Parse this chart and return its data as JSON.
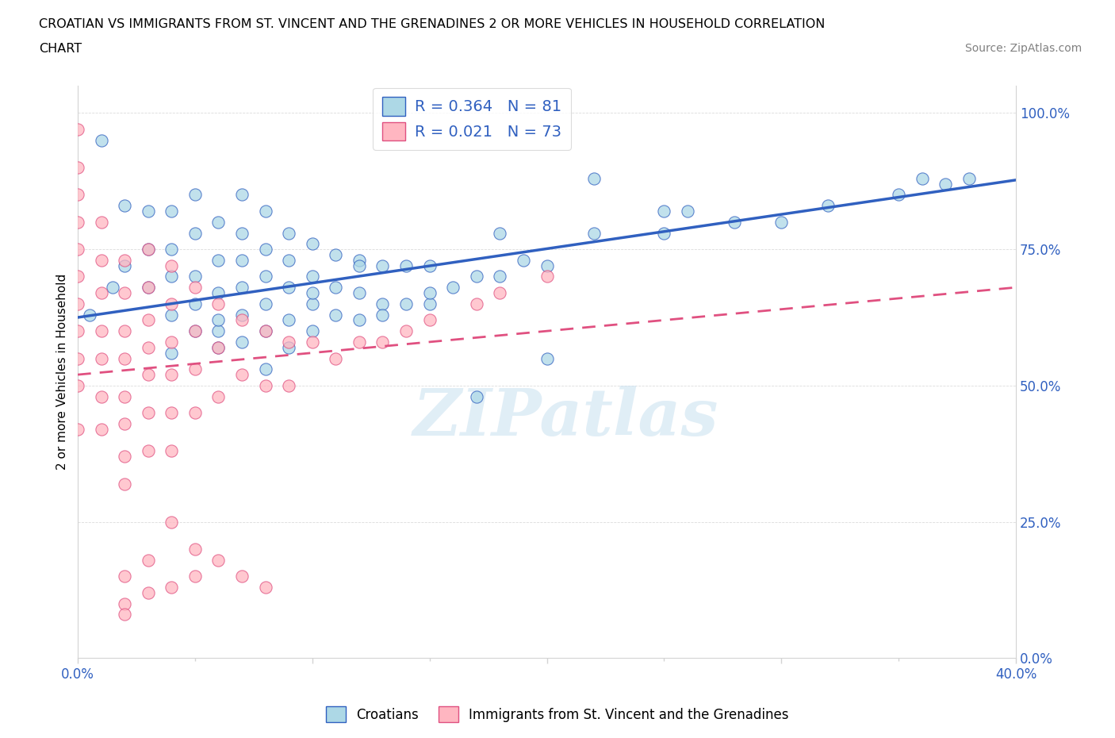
{
  "title_line1": "CROATIAN VS IMMIGRANTS FROM ST. VINCENT AND THE GRENADINES 2 OR MORE VEHICLES IN HOUSEHOLD CORRELATION",
  "title_line2": "CHART",
  "source_text": "Source: ZipAtlas.com",
  "ylabel": "2 or more Vehicles in Household",
  "legend_label_1": "Croatians",
  "legend_label_2": "Immigrants from St. Vincent and the Grenadines",
  "R1": 0.364,
  "N1": 81,
  "R2": 0.021,
  "N2": 73,
  "color_blue": "#ADD8E6",
  "color_pink": "#FFB6C1",
  "line_color_blue": "#3060C0",
  "line_color_pink": "#E05080",
  "xmin": 0.0,
  "xmax": 0.4,
  "ymin": 0.0,
  "ymax": 1.05,
  "blue_scatter_x": [
    0.005,
    0.01,
    0.015,
    0.02,
    0.02,
    0.03,
    0.03,
    0.03,
    0.04,
    0.04,
    0.04,
    0.04,
    0.05,
    0.05,
    0.05,
    0.05,
    0.05,
    0.06,
    0.06,
    0.06,
    0.06,
    0.07,
    0.07,
    0.07,
    0.07,
    0.07,
    0.07,
    0.08,
    0.08,
    0.08,
    0.08,
    0.08,
    0.09,
    0.09,
    0.09,
    0.09,
    0.1,
    0.1,
    0.1,
    0.1,
    0.11,
    0.11,
    0.11,
    0.12,
    0.12,
    0.12,
    0.13,
    0.13,
    0.14,
    0.14,
    0.15,
    0.15,
    0.16,
    0.17,
    0.18,
    0.19,
    0.2,
    0.22,
    0.25,
    0.28,
    0.3,
    0.32,
    0.35,
    0.37,
    0.22,
    0.26,
    0.17,
    0.2,
    0.08,
    0.06,
    0.09,
    0.13,
    0.15,
    0.04,
    0.06,
    0.1,
    0.12,
    0.18,
    0.25,
    0.36,
    0.38
  ],
  "blue_scatter_y": [
    0.63,
    0.95,
    0.68,
    0.72,
    0.83,
    0.68,
    0.75,
    0.82,
    0.63,
    0.7,
    0.75,
    0.82,
    0.6,
    0.65,
    0.7,
    0.78,
    0.85,
    0.6,
    0.67,
    0.73,
    0.8,
    0.58,
    0.63,
    0.68,
    0.73,
    0.78,
    0.85,
    0.6,
    0.65,
    0.7,
    0.75,
    0.82,
    0.62,
    0.68,
    0.73,
    0.78,
    0.6,
    0.65,
    0.7,
    0.76,
    0.63,
    0.68,
    0.74,
    0.62,
    0.67,
    0.73,
    0.65,
    0.72,
    0.65,
    0.72,
    0.65,
    0.72,
    0.68,
    0.7,
    0.7,
    0.73,
    0.72,
    0.78,
    0.78,
    0.8,
    0.8,
    0.83,
    0.85,
    0.87,
    0.88,
    0.82,
    0.48,
    0.55,
    0.53,
    0.57,
    0.57,
    0.63,
    0.67,
    0.56,
    0.62,
    0.67,
    0.72,
    0.78,
    0.82,
    0.88,
    0.88
  ],
  "pink_scatter_x": [
    0.0,
    0.0,
    0.0,
    0.0,
    0.0,
    0.0,
    0.0,
    0.0,
    0.0,
    0.0,
    0.0,
    0.01,
    0.01,
    0.01,
    0.01,
    0.01,
    0.01,
    0.01,
    0.02,
    0.02,
    0.02,
    0.02,
    0.02,
    0.02,
    0.02,
    0.02,
    0.03,
    0.03,
    0.03,
    0.03,
    0.03,
    0.03,
    0.03,
    0.04,
    0.04,
    0.04,
    0.04,
    0.04,
    0.04,
    0.05,
    0.05,
    0.05,
    0.05,
    0.06,
    0.06,
    0.06,
    0.07,
    0.07,
    0.08,
    0.08,
    0.09,
    0.09,
    0.1,
    0.11,
    0.12,
    0.13,
    0.14,
    0.15,
    0.17,
    0.18,
    0.2,
    0.04,
    0.05,
    0.03,
    0.02,
    0.02,
    0.02,
    0.03,
    0.04,
    0.05,
    0.06,
    0.07,
    0.08
  ],
  "pink_scatter_y": [
    0.97,
    0.9,
    0.85,
    0.8,
    0.75,
    0.7,
    0.65,
    0.6,
    0.55,
    0.5,
    0.42,
    0.8,
    0.73,
    0.67,
    0.6,
    0.55,
    0.48,
    0.42,
    0.73,
    0.67,
    0.6,
    0.55,
    0.48,
    0.43,
    0.37,
    0.32,
    0.75,
    0.68,
    0.62,
    0.57,
    0.52,
    0.45,
    0.38,
    0.72,
    0.65,
    0.58,
    0.52,
    0.45,
    0.38,
    0.68,
    0.6,
    0.53,
    0.45,
    0.65,
    0.57,
    0.48,
    0.62,
    0.52,
    0.6,
    0.5,
    0.58,
    0.5,
    0.58,
    0.55,
    0.58,
    0.58,
    0.6,
    0.62,
    0.65,
    0.67,
    0.7,
    0.25,
    0.2,
    0.18,
    0.15,
    0.1,
    0.08,
    0.12,
    0.13,
    0.15,
    0.18,
    0.15,
    0.13
  ]
}
